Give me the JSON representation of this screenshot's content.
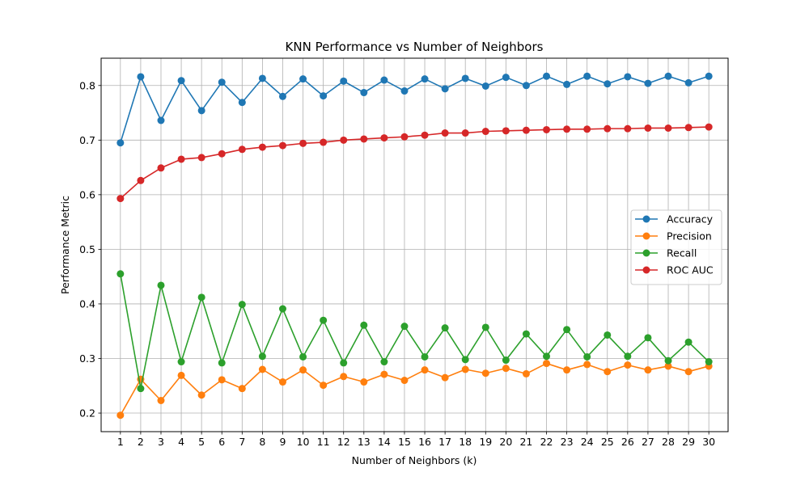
{
  "chart_data": {
    "type": "line",
    "title": "KNN Performance vs Number of Neighbors",
    "xlabel": "Number of Neighbors (k)",
    "ylabel": "Performance Metric",
    "x": [
      1,
      2,
      3,
      4,
      5,
      6,
      7,
      8,
      9,
      10,
      11,
      12,
      13,
      14,
      15,
      16,
      17,
      18,
      19,
      20,
      21,
      22,
      23,
      24,
      25,
      26,
      27,
      28,
      29,
      30
    ],
    "xlim": [
      0.05,
      30.95
    ],
    "ylim": [
      0.166,
      0.85
    ],
    "yticks": [
      0.2,
      0.3,
      0.4,
      0.5,
      0.6,
      0.7,
      0.8
    ],
    "grid": true,
    "legend_position": "center-right",
    "markers": "circle",
    "series": [
      {
        "name": "Accuracy",
        "color": "#1f77b4",
        "values": [
          0.695,
          0.816,
          0.736,
          0.809,
          0.754,
          0.806,
          0.769,
          0.813,
          0.78,
          0.812,
          0.781,
          0.808,
          0.787,
          0.81,
          0.79,
          0.812,
          0.794,
          0.813,
          0.799,
          0.815,
          0.8,
          0.817,
          0.802,
          0.817,
          0.803,
          0.816,
          0.804,
          0.817,
          0.805,
          0.817
        ]
      },
      {
        "name": "Precision",
        "color": "#ff7f0e",
        "values": [
          0.196,
          0.262,
          0.223,
          0.269,
          0.233,
          0.261,
          0.245,
          0.28,
          0.257,
          0.279,
          0.251,
          0.267,
          0.257,
          0.271,
          0.26,
          0.279,
          0.265,
          0.28,
          0.273,
          0.282,
          0.272,
          0.291,
          0.279,
          0.289,
          0.276,
          0.288,
          0.279,
          0.286,
          0.276,
          0.286
        ]
      },
      {
        "name": "Recall",
        "color": "#2ca02c",
        "values": [
          0.455,
          0.245,
          0.434,
          0.294,
          0.412,
          0.292,
          0.399,
          0.304,
          0.391,
          0.303,
          0.37,
          0.292,
          0.361,
          0.294,
          0.359,
          0.303,
          0.356,
          0.298,
          0.357,
          0.297,
          0.345,
          0.304,
          0.353,
          0.303,
          0.343,
          0.304,
          0.338,
          0.296,
          0.33,
          0.294
        ]
      },
      {
        "name": "ROC AUC",
        "color": "#d62728",
        "values": [
          0.593,
          0.626,
          0.649,
          0.665,
          0.668,
          0.675,
          0.683,
          0.687,
          0.69,
          0.694,
          0.696,
          0.7,
          0.702,
          0.704,
          0.706,
          0.709,
          0.713,
          0.713,
          0.716,
          0.717,
          0.718,
          0.719,
          0.72,
          0.72,
          0.721,
          0.721,
          0.722,
          0.722,
          0.723,
          0.724
        ]
      }
    ]
  }
}
